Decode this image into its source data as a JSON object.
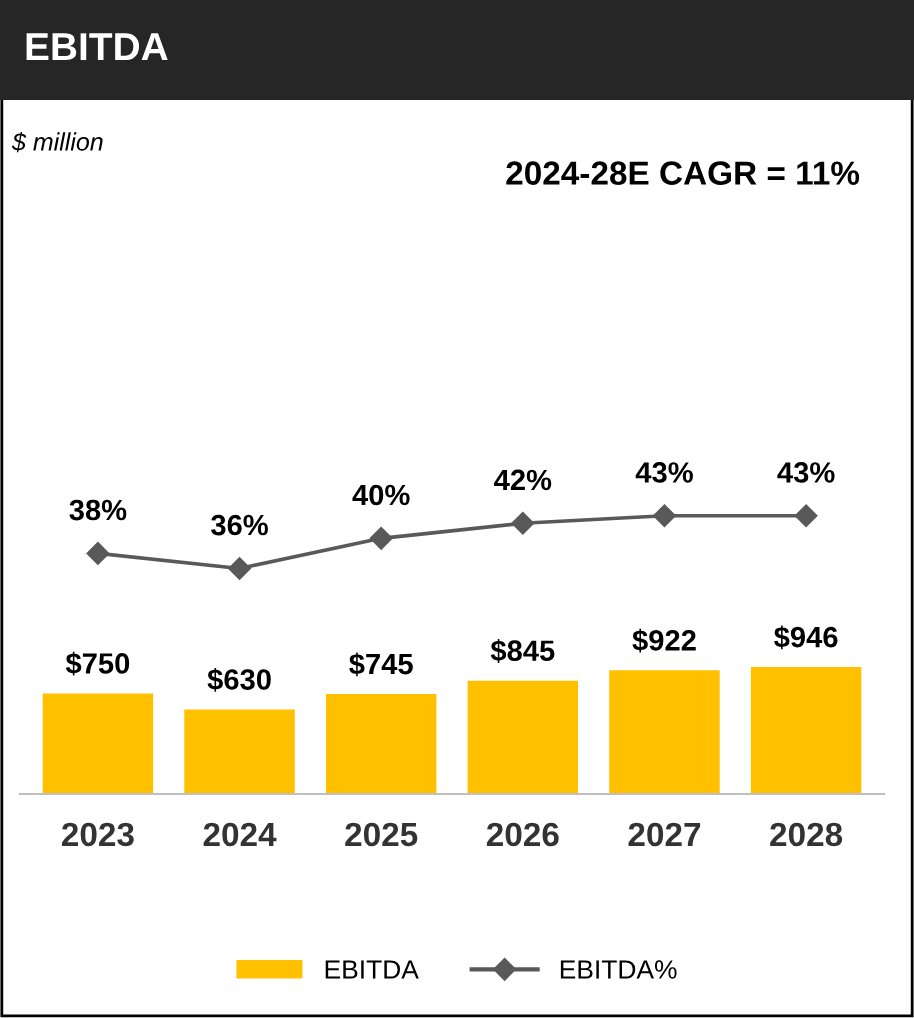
{
  "chart_data": [
    {
      "type": "line",
      "title": "EBITDA",
      "annotations": [
        "$ million",
        "2024-28E CAGR = 11%"
      ],
      "categories": [
        "2023",
        "2024",
        "2025",
        "2026",
        "2027",
        "2028"
      ],
      "series": [
        {
          "name": "EBITDA%",
          "color": "#595959",
          "values": [
            38,
            36,
            40,
            42,
            43,
            43
          ],
          "value_labels": [
            "38%",
            "36%",
            "40%",
            "42%",
            "43%",
            "43%"
          ]
        }
      ],
      "marker": "diamond",
      "tick_labels": false,
      "legend": "bottom"
    },
    {
      "type": "bar",
      "categories": [
        "2023",
        "2024",
        "2025",
        "2026",
        "2027",
        "2028"
      ],
      "series": [
        {
          "name": "EBITDA",
          "color": "#ffc000",
          "values": [
            750,
            630,
            745,
            845,
            922,
            946
          ],
          "value_labels": [
            "$750",
            "$630",
            "$745",
            "$845",
            "$922",
            "$946"
          ]
        }
      ],
      "tick_labels": "x",
      "legend": "bottom"
    }
  ]
}
